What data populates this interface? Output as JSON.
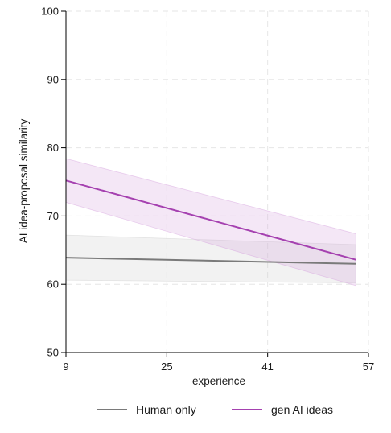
{
  "chart_data": {
    "type": "line",
    "title": "",
    "xlabel": "experience",
    "ylabel": "AI idea-proposal similarity",
    "xlim": [
      9,
      57
    ],
    "ylim": [
      50,
      100
    ],
    "x_ticks": [
      9,
      25,
      41,
      57
    ],
    "y_ticks": [
      50,
      60,
      70,
      80,
      90,
      100
    ],
    "grid": true,
    "legend_position": "bottom",
    "series": [
      {
        "name": "Human only",
        "color": "#7a7a7a",
        "band_color": "#cfcfcf",
        "x": [
          9,
          55
        ],
        "y": [
          63.9,
          63.0
        ],
        "ci_lower": [
          60.6,
          60.2
        ],
        "ci_upper": [
          67.2,
          65.8
        ]
      },
      {
        "name": "gen AI ideas",
        "color": "#a541b0",
        "band_color": "#d9a9e0",
        "x": [
          9,
          55
        ],
        "y": [
          75.2,
          63.6
        ],
        "ci_lower": [
          72.0,
          59.8
        ],
        "ci_upper": [
          78.4,
          67.4
        ]
      }
    ]
  }
}
